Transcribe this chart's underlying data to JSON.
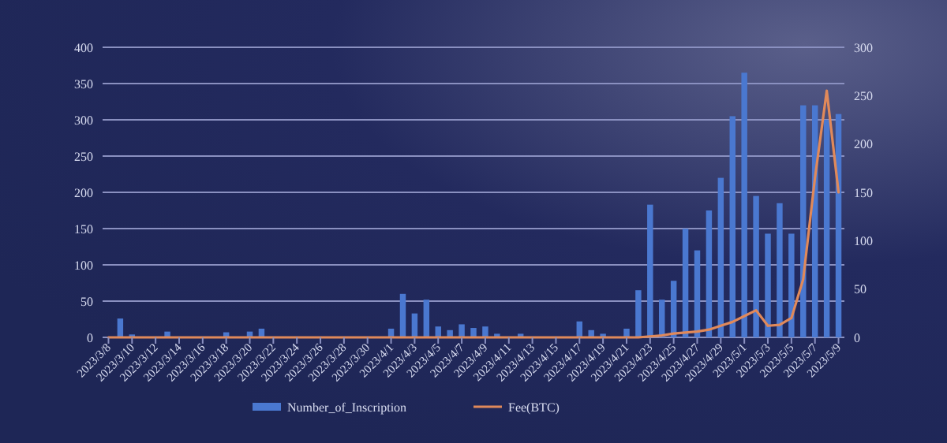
{
  "chart_data": {
    "type": "bar",
    "categories": [
      "2023/3/8",
      null,
      "2023/3/10",
      null,
      "2023/3/12",
      null,
      "2023/3/14",
      null,
      "2023/3/16",
      null,
      "2023/3/18",
      null,
      "2023/3/20",
      null,
      "2023/3/22",
      null,
      "2023/3/24",
      null,
      "2023/3/26",
      null,
      "2023/3/28",
      null,
      "2023/3/30",
      null,
      "2023/4/1",
      null,
      "2023/4/3",
      null,
      "2023/4/5",
      null,
      "2023/4/7",
      null,
      "2023/4/9",
      null,
      "2023/4/11",
      null,
      "2023/4/13",
      null,
      "2023/4/15",
      null,
      "2023/4/17",
      null,
      "2023/4/19",
      null,
      "2023/4/21",
      null,
      "2023/4/23",
      null,
      "2023/4/25",
      null,
      "2023/4/27",
      null,
      "2023/4/29",
      null,
      "2023/5/1",
      null,
      "2023/5/3",
      null,
      "2023/5/5",
      null,
      "2023/5/7",
      null,
      "2023/5/9"
    ],
    "series": [
      {
        "name": "Number_of_Inscription",
        "color": "#4a78d0",
        "values": [
          0,
          26,
          4,
          0,
          0,
          8,
          0,
          0,
          0,
          0,
          7,
          0,
          8,
          12,
          0,
          0,
          0,
          0,
          0,
          0,
          0,
          0,
          0,
          0,
          12,
          60,
          33,
          52,
          15,
          10,
          18,
          13,
          15,
          5,
          0,
          5,
          0,
          0,
          0,
          0,
          22,
          10,
          5,
          0,
          12,
          65,
          183,
          52,
          78,
          150,
          120,
          175,
          220,
          305,
          365,
          195,
          143,
          185,
          143,
          320,
          320,
          300,
          308
        ]
      },
      {
        "name": "Fee(BTC)",
        "type": "line",
        "axis": "y2",
        "color": "#e0895a",
        "values": [
          0,
          0,
          0,
          0,
          0,
          0,
          0,
          0,
          0,
          0,
          0,
          0,
          0,
          0,
          0,
          0,
          0,
          0,
          0,
          0,
          0,
          0,
          0,
          0,
          0,
          0,
          0,
          0,
          0,
          0,
          0,
          0,
          0,
          0,
          0,
          0,
          0,
          0,
          0,
          0,
          0,
          0,
          0,
          0,
          0,
          0,
          1,
          2,
          4,
          5,
          6,
          8,
          12,
          16,
          22,
          28,
          12,
          13,
          20,
          60,
          165,
          255,
          150
        ]
      }
    ],
    "ylim": [
      0,
      400
    ],
    "yticks": [
      0,
      50,
      100,
      150,
      200,
      250,
      300,
      350,
      400
    ],
    "y2lim": [
      0,
      300
    ],
    "y2ticks": [
      0,
      50,
      100,
      150,
      200,
      250,
      300
    ],
    "grid": "y",
    "legend": "bottom",
    "marker": "none",
    "line_style": "solid"
  }
}
